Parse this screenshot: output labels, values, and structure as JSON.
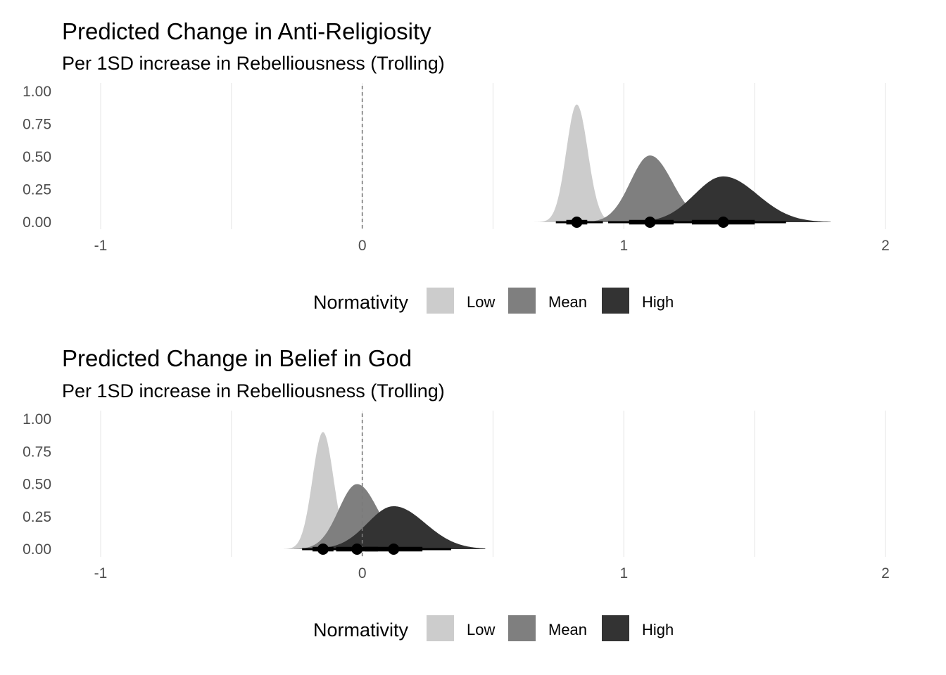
{
  "chart_data": [
    {
      "type": "area",
      "title": "Predicted Change in Anti-Religiosity",
      "subtitle": "Per 1SD increase in Rebelliousness (Trolling)",
      "xlabel": "",
      "ylabel": "",
      "xlim": [
        -1,
        2
      ],
      "ylim": [
        0,
        1
      ],
      "x_ticks": [
        "-1",
        "0",
        "1",
        "2"
      ],
      "y_ticks": [
        "0.00",
        "0.25",
        "0.50",
        "0.75",
        "1.00"
      ],
      "reference_line_x": 0,
      "grid": true,
      "legend": {
        "title": "Normativity",
        "position": "bottom"
      },
      "series": [
        {
          "name": "Low",
          "color": "#cccccc",
          "mode": 0.82,
          "peak": 0.9,
          "sd_left": 0.04,
          "sd_right": 0.042,
          "range": [
            0.62,
            1.04
          ],
          "point": 0.82,
          "interval_66": [
            0.78,
            0.86
          ],
          "interval_95": [
            0.74,
            0.92
          ]
        },
        {
          "name": "Mean",
          "color": "#7f7f7f",
          "mode": 1.1,
          "peak": 0.51,
          "sd_left": 0.075,
          "sd_right": 0.085,
          "range": [
            0.8,
            1.4
          ],
          "point": 1.1,
          "interval_66": [
            1.02,
            1.19
          ],
          "interval_95": [
            0.94,
            1.28
          ]
        },
        {
          "name": "High",
          "color": "#333333",
          "mode": 1.38,
          "peak": 0.35,
          "sd_left": 0.11,
          "sd_right": 0.13,
          "range": [
            0.96,
            1.79
          ],
          "point": 1.38,
          "interval_66": [
            1.26,
            1.5
          ],
          "interval_95": [
            1.14,
            1.62
          ]
        }
      ]
    },
    {
      "type": "area",
      "title": "Predicted Change in Belief in God",
      "subtitle": "Per 1SD increase in Rebelliousness (Trolling)",
      "xlabel": "",
      "ylabel": "",
      "xlim": [
        -1,
        2
      ],
      "ylim": [
        0,
        1
      ],
      "x_ticks": [
        "-1",
        "0",
        "1",
        "2"
      ],
      "y_ticks": [
        "0.00",
        "0.25",
        "0.50",
        "0.75",
        "1.00"
      ],
      "reference_line_x": 0,
      "grid": true,
      "legend": {
        "title": "Normativity",
        "position": "bottom"
      },
      "series": [
        {
          "name": "Low",
          "color": "#cccccc",
          "mode": -0.15,
          "peak": 0.9,
          "sd_left": 0.04,
          "sd_right": 0.04,
          "range": [
            -0.3,
            0.02
          ],
          "point": -0.15,
          "interval_66": [
            -0.19,
            -0.11
          ],
          "interval_95": [
            -0.23,
            -0.07
          ]
        },
        {
          "name": "Mean",
          "color": "#7f7f7f",
          "mode": -0.02,
          "peak": 0.5,
          "sd_left": 0.07,
          "sd_right": 0.08,
          "range": [
            -0.26,
            0.24
          ],
          "point": -0.02,
          "interval_66": [
            -0.1,
            0.06
          ],
          "interval_95": [
            -0.17,
            0.13
          ]
        },
        {
          "name": "High",
          "color": "#333333",
          "mode": 0.12,
          "peak": 0.33,
          "sd_left": 0.1,
          "sd_right": 0.12,
          "range": [
            -0.2,
            0.47
          ],
          "point": 0.12,
          "interval_66": [
            0.01,
            0.23
          ],
          "interval_95": [
            -0.09,
            0.34
          ]
        }
      ]
    }
  ]
}
